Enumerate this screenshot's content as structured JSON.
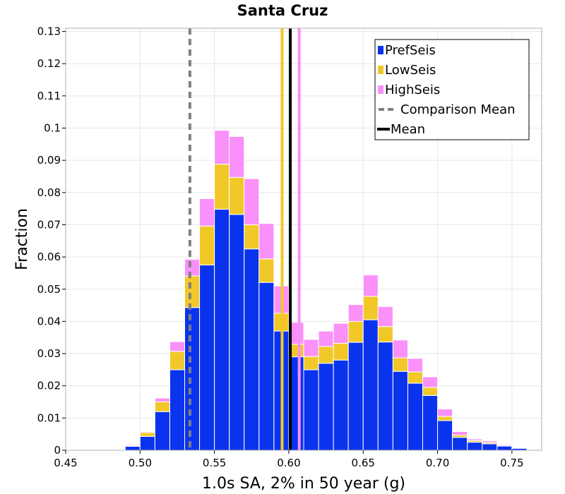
{
  "chart_data": {
    "type": "bar",
    "stacked": true,
    "title": "Santa Cruz",
    "xlabel": "1.0s SA, 2% in 50 year (g)",
    "ylabel": "Fraction",
    "xlim": [
      0.45,
      0.77
    ],
    "ylim": [
      0,
      0.131
    ],
    "bin_width": 0.01,
    "x_ticks": [
      0.45,
      0.5,
      0.55,
      0.6,
      0.65,
      0.7,
      0.75
    ],
    "x_tick_labels": [
      "0.45",
      "0.50",
      "0.55",
      "0.60",
      "0.65",
      "0.70",
      "0.75"
    ],
    "y_ticks": [
      0,
      0.01,
      0.02,
      0.03,
      0.04,
      0.05,
      0.06,
      0.07,
      0.08,
      0.09,
      0.1,
      0.11,
      0.12,
      0.13
    ],
    "y_tick_labels": [
      "0",
      "0.01",
      "0.02",
      "0.03",
      "0.04",
      "0.05",
      "0.06",
      "0.07",
      "0.08",
      "0.09",
      "0.1",
      "0.11",
      "0.12",
      "0.13"
    ],
    "bin_starts": [
      0.48,
      0.49,
      0.5,
      0.51,
      0.52,
      0.53,
      0.54,
      0.55,
      0.56,
      0.57,
      0.58,
      0.59,
      0.6,
      0.61,
      0.62,
      0.63,
      0.64,
      0.65,
      0.66,
      0.67,
      0.68,
      0.69,
      0.7,
      0.71,
      0.72,
      0.73,
      0.74,
      0.75
    ],
    "series": [
      {
        "name": "PrefSeis",
        "color": "#0a33ee",
        "values": [
          0.0002,
          0.0012,
          0.0043,
          0.012,
          0.025,
          0.0443,
          0.0575,
          0.0748,
          0.0732,
          0.0625,
          0.0521,
          0.037,
          0.029,
          0.025,
          0.027,
          0.028,
          0.0335,
          0.0405,
          0.0336,
          0.0245,
          0.0208,
          0.017,
          0.0092,
          0.004,
          0.0025,
          0.002,
          0.0013,
          0.0006
        ]
      },
      {
        "name": "LowSeis",
        "color": "#f2c829",
        "values": [
          0.0,
          0.0002,
          0.0012,
          0.003,
          0.0057,
          0.0098,
          0.0121,
          0.014,
          0.0115,
          0.0075,
          0.0073,
          0.0055,
          0.0039,
          0.0041,
          0.0052,
          0.0052,
          0.0065,
          0.0073,
          0.0048,
          0.0042,
          0.0035,
          0.0025,
          0.0013,
          0.0007,
          0.0005,
          0.0004,
          0.0002,
          0.0001
        ]
      },
      {
        "name": "HighSeis",
        "color": "#fa90fa",
        "values": [
          0.0001,
          0.0003,
          0.0003,
          0.0012,
          0.003,
          0.0052,
          0.0085,
          0.0105,
          0.0127,
          0.0143,
          0.011,
          0.0085,
          0.0068,
          0.0053,
          0.0048,
          0.0062,
          0.0052,
          0.0066,
          0.0062,
          0.0055,
          0.0042,
          0.0033,
          0.0023,
          0.0011,
          0.0005,
          0.0005,
          0.0003,
          0.0001
        ]
      }
    ],
    "lines": [
      {
        "name": "Comparison Mean",
        "x": 0.5335,
        "color": "#808080",
        "style": "dashed"
      },
      {
        "name": "Mean",
        "x": 0.601,
        "color": "#000000",
        "style": "solid"
      },
      {
        "name": "LowSeis mean",
        "x": 0.5955,
        "color": "#f2c829",
        "style": "solid"
      },
      {
        "name": "HighSeis mean",
        "x": 0.607,
        "color": "#fa90fa",
        "style": "solid"
      }
    ],
    "legend": {
      "position": "top-right",
      "entries": [
        {
          "label": "PrefSeis",
          "kind": "box",
          "color": "#0a33ee"
        },
        {
          "label": "LowSeis",
          "kind": "box",
          "color": "#f2c829"
        },
        {
          "label": "HighSeis",
          "kind": "box",
          "color": "#fa90fa"
        },
        {
          "label": "Comparison Mean",
          "kind": "dashed",
          "color": "#808080"
        },
        {
          "label": "Mean",
          "kind": "line",
          "color": "#000000"
        }
      ]
    },
    "grid": true
  }
}
